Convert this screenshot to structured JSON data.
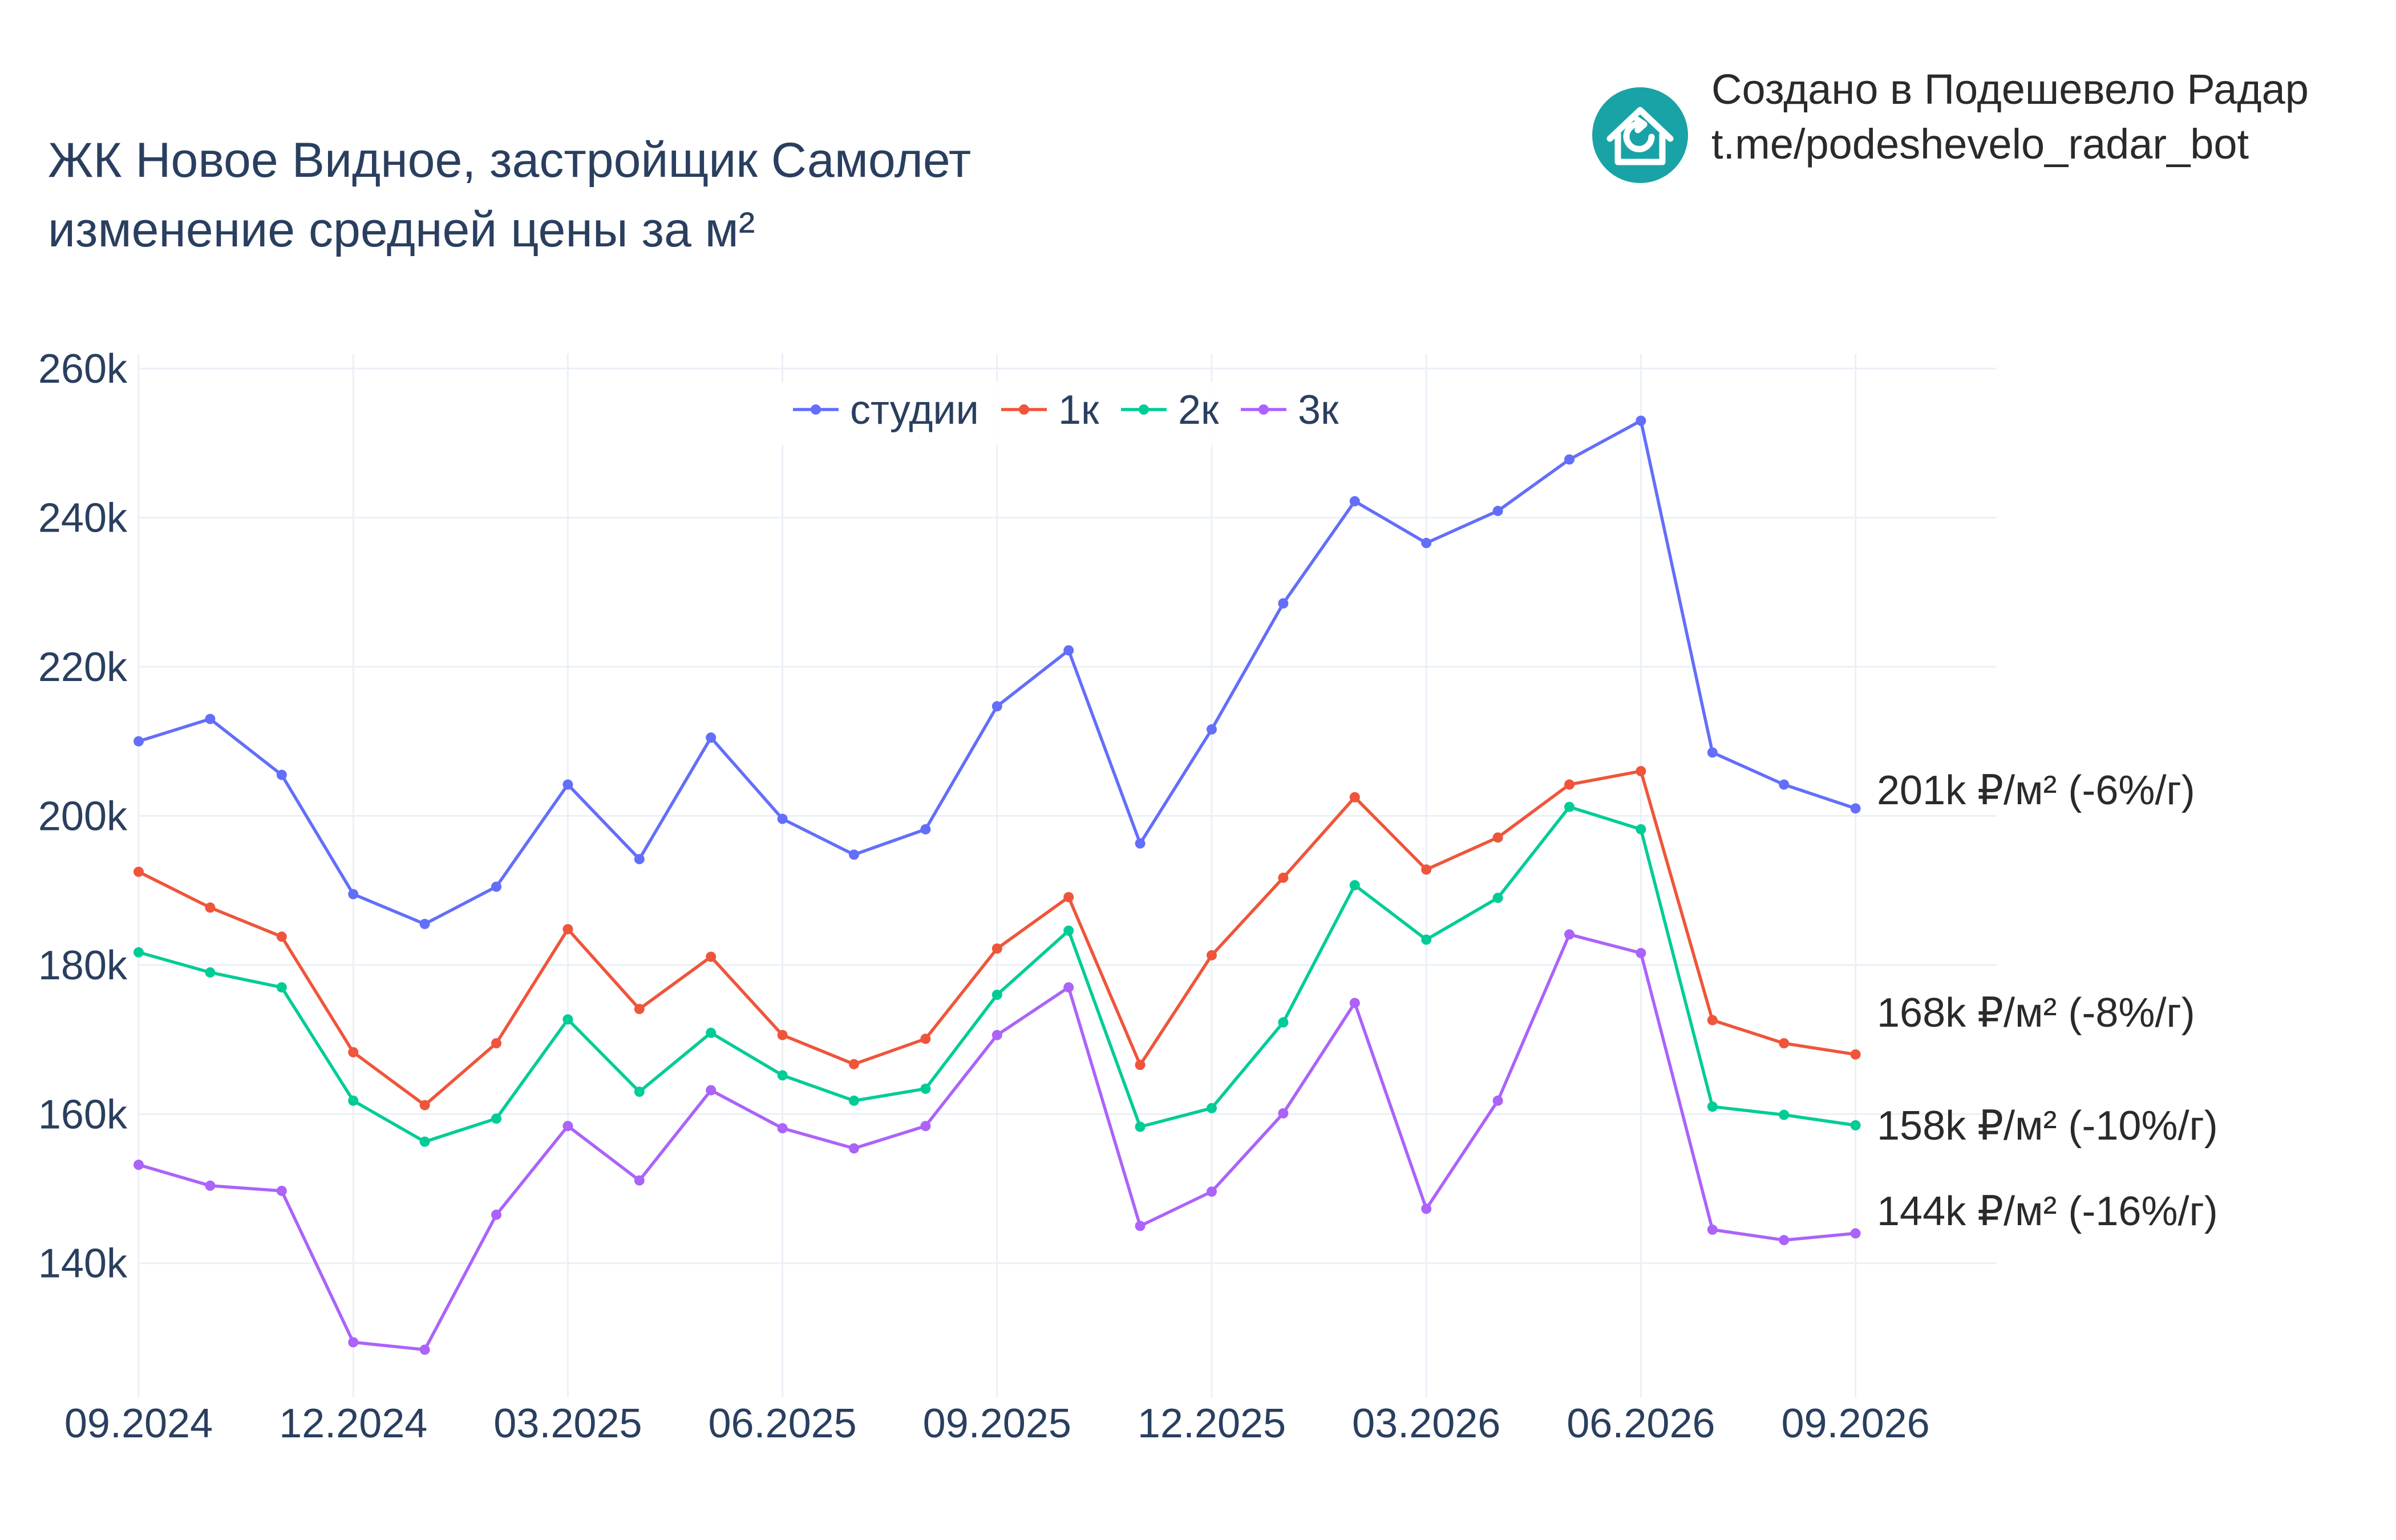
{
  "brand": {
    "line1": "Создано в Подешевело Радар",
    "line2": "t.me/podeshevelo_radar_bot",
    "logo_icon": "house-refresh-icon",
    "logo_color": "#1aa3a6"
  },
  "chart_data": {
    "type": "line",
    "title": "ЖК Новое Видное, застройщик Самолет",
    "subtitle": "изменение средней цены за м²",
    "xlabel": "",
    "ylabel": "",
    "x": [
      "2024-09",
      "2024-10",
      "2024-11",
      "2024-12",
      "2025-01",
      "2025-02",
      "2025-03",
      "2025-04",
      "2025-05",
      "2025-06",
      "2025-07",
      "2025-08",
      "2025-09",
      "2025-10",
      "2025-11",
      "2025-12",
      "2026-01",
      "2026-02",
      "2026-03",
      "2026-04",
      "2026-05",
      "2026-06",
      "2026-07",
      "2026-08",
      "2026-09"
    ],
    "x_ticks": [
      "09.2024",
      "12.2024",
      "03.2025",
      "06.2025",
      "09.2025",
      "12.2025",
      "03.2026",
      "06.2026",
      "09.2026"
    ],
    "y_ticks": [
      "140k",
      "160k",
      "180k",
      "200k",
      "220k",
      "240k",
      "260k"
    ],
    "ylim": [
      122000,
      262000
    ],
    "grid": true,
    "legend_position": "top-center",
    "series": [
      {
        "name": "студии",
        "color": "#636efa",
        "values": [
          210000,
          213000,
          205500,
          189500,
          185500,
          190500,
          204200,
          194200,
          210500,
          199600,
          194800,
          198200,
          214700,
          222200,
          196300,
          211600,
          228500,
          242200,
          236600,
          240900,
          247800,
          253000,
          208500,
          204200,
          201000
        ],
        "end_label": "201k ₽/м² (-6%/г)"
      },
      {
        "name": "1к",
        "color": "#ef553b",
        "values": [
          192500,
          187700,
          183800,
          168300,
          161200,
          169500,
          184800,
          174100,
          181100,
          170600,
          166700,
          170100,
          182200,
          189100,
          166600,
          181300,
          191700,
          202500,
          192800,
          197100,
          204200,
          206000,
          172600,
          169500,
          168000
        ],
        "end_label": "168k ₽/м² (-8%/г)"
      },
      {
        "name": "2к",
        "color": "#00cc96",
        "values": [
          181700,
          179000,
          177000,
          161800,
          156300,
          159400,
          172700,
          163000,
          170900,
          165200,
          161800,
          163400,
          176000,
          184600,
          158300,
          160800,
          172300,
          190700,
          183400,
          189000,
          201200,
          198200,
          161000,
          159900,
          158500
        ],
        "end_label": "158k ₽/м² (-10%/г)"
      },
      {
        "name": "3к",
        "color": "#ab63fa",
        "values": [
          153200,
          150400,
          149700,
          129400,
          128400,
          146500,
          158400,
          151100,
          163200,
          158100,
          155400,
          158400,
          170600,
          177000,
          145000,
          149600,
          160100,
          174900,
          147300,
          161800,
          184100,
          181600,
          144500,
          143100,
          144000
        ],
        "end_label": "144k ₽/м² (-16%/г)"
      }
    ]
  }
}
